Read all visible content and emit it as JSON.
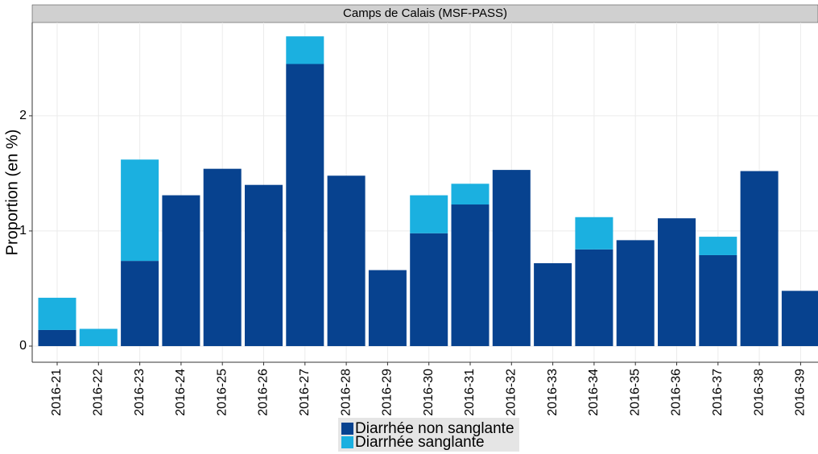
{
  "chart_data": {
    "type": "bar",
    "stacked": true,
    "title": "Camps de Calais (MSF-PASS)",
    "y_label": "Proportion (en %)",
    "categories": [
      "2016-21",
      "2016-22",
      "2016-23",
      "2016-24",
      "2016-25",
      "2016-26",
      "2016-27",
      "2016-28",
      "2016-29",
      "2016-30",
      "2016-31",
      "2016-32",
      "2016-33",
      "2016-34",
      "2016-35",
      "2016-36",
      "2016-37",
      "2016-38",
      "2016-39"
    ],
    "series": [
      {
        "name": "Diarrhée non sanglante",
        "color": "#07428f",
        "values": [
          0.14,
          0,
          0.74,
          1.31,
          1.54,
          1.4,
          2.45,
          1.48,
          0.66,
          0.98,
          1.23,
          1.53,
          0.72,
          0.84,
          0.92,
          1.11,
          0.79,
          1.52,
          0.48
        ]
      },
      {
        "name": "Diarrhée sanglante",
        "color": "#1bb0e0",
        "values": [
          0.28,
          0.15,
          0.88,
          0,
          0,
          0,
          0.24,
          0,
          0,
          0.33,
          0.18,
          0,
          0,
          0.28,
          0,
          0,
          0.16,
          0,
          0
        ]
      }
    ],
    "ylim": [
      -0.14,
      2.81
    ],
    "yticks": [
      0,
      1,
      2
    ],
    "grid": true,
    "legend": "bottom"
  }
}
